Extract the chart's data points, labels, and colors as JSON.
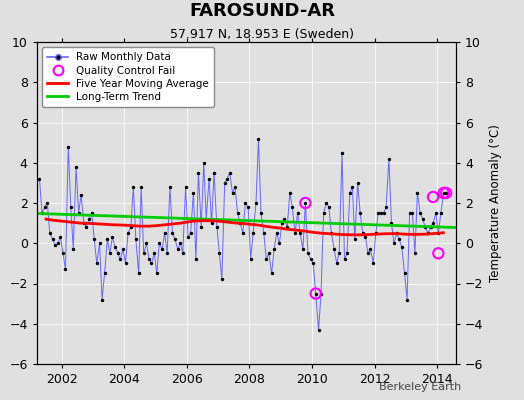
{
  "title": "FAROSUND-AR",
  "subtitle": "57.917 N, 18.953 E (Sweden)",
  "ylabel": "Temperature Anomaly (°C)",
  "ylim": [
    -6,
    10
  ],
  "yticks": [
    -6,
    -4,
    -2,
    0,
    2,
    4,
    6,
    8,
    10
  ],
  "xlim": [
    2001.2,
    2014.6
  ],
  "xticks": [
    2002,
    2004,
    2006,
    2008,
    2010,
    2012,
    2014
  ],
  "background_color": "#e0e0e0",
  "watermark": "Berkeley Earth",
  "raw_color": "#6666ff",
  "dot_color": "#000000",
  "ma_color": "#ff0000",
  "trend_color": "#00cc00",
  "qc_color": "#ff00ff",
  "raw_data": [
    [
      2001.29,
      3.2
    ],
    [
      2001.37,
      1.5
    ],
    [
      2001.46,
      1.8
    ],
    [
      2001.54,
      2.0
    ],
    [
      2001.62,
      0.5
    ],
    [
      2001.71,
      0.2
    ],
    [
      2001.79,
      -0.1
    ],
    [
      2001.87,
      0.0
    ],
    [
      2001.96,
      0.3
    ],
    [
      2002.04,
      -0.5
    ],
    [
      2002.12,
      -1.3
    ],
    [
      2002.21,
      4.8
    ],
    [
      2002.29,
      1.8
    ],
    [
      2002.37,
      -0.3
    ],
    [
      2002.46,
      3.8
    ],
    [
      2002.54,
      1.5
    ],
    [
      2002.62,
      2.4
    ],
    [
      2002.71,
      1.0
    ],
    [
      2002.79,
      0.8
    ],
    [
      2002.87,
      1.2
    ],
    [
      2002.96,
      1.5
    ],
    [
      2003.04,
      0.2
    ],
    [
      2003.12,
      -1.0
    ],
    [
      2003.21,
      0.0
    ],
    [
      2003.29,
      -2.8
    ],
    [
      2003.37,
      -1.5
    ],
    [
      2003.46,
      0.2
    ],
    [
      2003.54,
      -0.5
    ],
    [
      2003.62,
      0.3
    ],
    [
      2003.71,
      -0.2
    ],
    [
      2003.79,
      -0.5
    ],
    [
      2003.87,
      -0.8
    ],
    [
      2003.96,
      -0.3
    ],
    [
      2004.04,
      -1.0
    ],
    [
      2004.12,
      0.5
    ],
    [
      2004.21,
      0.8
    ],
    [
      2004.29,
      2.8
    ],
    [
      2004.37,
      0.2
    ],
    [
      2004.46,
      -1.5
    ],
    [
      2004.54,
      2.8
    ],
    [
      2004.62,
      -0.5
    ],
    [
      2004.71,
      0.0
    ],
    [
      2004.79,
      -0.8
    ],
    [
      2004.87,
      -1.0
    ],
    [
      2004.96,
      -0.5
    ],
    [
      2005.04,
      -1.5
    ],
    [
      2005.12,
      0.0
    ],
    [
      2005.21,
      -0.3
    ],
    [
      2005.29,
      0.5
    ],
    [
      2005.37,
      -0.5
    ],
    [
      2005.46,
      2.8
    ],
    [
      2005.54,
      0.5
    ],
    [
      2005.62,
      0.2
    ],
    [
      2005.71,
      -0.3
    ],
    [
      2005.79,
      0.0
    ],
    [
      2005.87,
      -0.5
    ],
    [
      2005.96,
      2.8
    ],
    [
      2006.04,
      0.3
    ],
    [
      2006.12,
      0.5
    ],
    [
      2006.21,
      2.5
    ],
    [
      2006.29,
      -0.8
    ],
    [
      2006.37,
      3.5
    ],
    [
      2006.46,
      0.8
    ],
    [
      2006.54,
      4.0
    ],
    [
      2006.62,
      1.2
    ],
    [
      2006.71,
      3.2
    ],
    [
      2006.79,
      1.0
    ],
    [
      2006.87,
      3.5
    ],
    [
      2006.96,
      0.8
    ],
    [
      2007.04,
      -0.5
    ],
    [
      2007.12,
      -1.8
    ],
    [
      2007.21,
      3.0
    ],
    [
      2007.29,
      3.2
    ],
    [
      2007.37,
      3.5
    ],
    [
      2007.46,
      2.5
    ],
    [
      2007.54,
      2.8
    ],
    [
      2007.62,
      1.5
    ],
    [
      2007.71,
      1.0
    ],
    [
      2007.79,
      0.5
    ],
    [
      2007.87,
      2.0
    ],
    [
      2007.96,
      1.8
    ],
    [
      2008.04,
      -0.8
    ],
    [
      2008.12,
      0.5
    ],
    [
      2008.21,
      2.0
    ],
    [
      2008.29,
      5.2
    ],
    [
      2008.37,
      1.5
    ],
    [
      2008.46,
      0.5
    ],
    [
      2008.54,
      -0.8
    ],
    [
      2008.62,
      -0.5
    ],
    [
      2008.71,
      -1.5
    ],
    [
      2008.79,
      -0.3
    ],
    [
      2008.87,
      0.5
    ],
    [
      2008.96,
      0.0
    ],
    [
      2009.04,
      1.0
    ],
    [
      2009.12,
      1.2
    ],
    [
      2009.21,
      0.8
    ],
    [
      2009.29,
      2.5
    ],
    [
      2009.37,
      1.8
    ],
    [
      2009.46,
      0.5
    ],
    [
      2009.54,
      1.5
    ],
    [
      2009.62,
      0.5
    ],
    [
      2009.71,
      -0.3
    ],
    [
      2009.79,
      2.0
    ],
    [
      2009.87,
      -0.5
    ],
    [
      2009.96,
      -0.8
    ],
    [
      2010.04,
      -1.0
    ],
    [
      2010.12,
      -2.5
    ],
    [
      2010.21,
      -4.3
    ],
    [
      2010.29,
      -2.5
    ],
    [
      2010.37,
      1.5
    ],
    [
      2010.46,
      2.0
    ],
    [
      2010.54,
      1.8
    ],
    [
      2010.62,
      0.5
    ],
    [
      2010.71,
      -0.3
    ],
    [
      2010.79,
      -1.0
    ],
    [
      2010.87,
      -0.5
    ],
    [
      2010.96,
      4.5
    ],
    [
      2011.04,
      -0.8
    ],
    [
      2011.12,
      -0.5
    ],
    [
      2011.21,
      2.5
    ],
    [
      2011.29,
      2.8
    ],
    [
      2011.37,
      0.2
    ],
    [
      2011.46,
      3.0
    ],
    [
      2011.54,
      1.5
    ],
    [
      2011.62,
      0.5
    ],
    [
      2011.71,
      0.3
    ],
    [
      2011.79,
      -0.5
    ],
    [
      2011.87,
      -0.3
    ],
    [
      2011.96,
      -1.0
    ],
    [
      2012.04,
      0.5
    ],
    [
      2012.12,
      1.5
    ],
    [
      2012.21,
      1.5
    ],
    [
      2012.29,
      1.5
    ],
    [
      2012.37,
      1.8
    ],
    [
      2012.46,
      4.2
    ],
    [
      2012.54,
      1.0
    ],
    [
      2012.62,
      0.0
    ],
    [
      2012.71,
      0.5
    ],
    [
      2012.79,
      0.2
    ],
    [
      2012.87,
      -0.2
    ],
    [
      2012.96,
      -1.5
    ],
    [
      2013.04,
      -2.8
    ],
    [
      2013.12,
      1.5
    ],
    [
      2013.21,
      1.5
    ],
    [
      2013.29,
      -0.5
    ],
    [
      2013.37,
      2.5
    ],
    [
      2013.46,
      1.5
    ],
    [
      2013.54,
      1.2
    ],
    [
      2013.62,
      0.8
    ],
    [
      2013.71,
      0.5
    ],
    [
      2013.79,
      0.8
    ],
    [
      2013.87,
      1.0
    ],
    [
      2013.96,
      1.5
    ],
    [
      2014.04,
      0.5
    ],
    [
      2014.12,
      1.5
    ],
    [
      2014.21,
      2.5
    ],
    [
      2014.29,
      2.5
    ]
  ],
  "moving_avg": [
    [
      2001.5,
      1.2
    ],
    [
      2001.7,
      1.15
    ],
    [
      2002.0,
      1.1
    ],
    [
      2002.3,
      1.05
    ],
    [
      2002.6,
      1.0
    ],
    [
      2003.0,
      0.98
    ],
    [
      2003.3,
      0.95
    ],
    [
      2003.6,
      0.92
    ],
    [
      2004.0,
      0.9
    ],
    [
      2004.2,
      0.88
    ],
    [
      2004.5,
      0.85
    ],
    [
      2004.8,
      0.85
    ],
    [
      2005.0,
      0.87
    ],
    [
      2005.2,
      0.9
    ],
    [
      2005.5,
      0.95
    ],
    [
      2005.8,
      1.0
    ],
    [
      2006.0,
      1.05
    ],
    [
      2006.2,
      1.1
    ],
    [
      2006.5,
      1.12
    ],
    [
      2006.8,
      1.12
    ],
    [
      2007.0,
      1.1
    ],
    [
      2007.3,
      1.05
    ],
    [
      2007.6,
      1.0
    ],
    [
      2007.8,
      0.98
    ],
    [
      2008.0,
      0.95
    ],
    [
      2008.3,
      0.9
    ],
    [
      2008.5,
      0.85
    ],
    [
      2008.7,
      0.8
    ],
    [
      2009.0,
      0.75
    ],
    [
      2009.2,
      0.7
    ],
    [
      2009.5,
      0.65
    ],
    [
      2009.8,
      0.6
    ],
    [
      2010.0,
      0.55
    ],
    [
      2010.3,
      0.5
    ],
    [
      2010.5,
      0.48
    ],
    [
      2010.8,
      0.45
    ],
    [
      2011.0,
      0.43
    ],
    [
      2011.3,
      0.42
    ],
    [
      2011.6,
      0.42
    ],
    [
      2011.8,
      0.43
    ],
    [
      2012.0,
      0.45
    ],
    [
      2012.3,
      0.47
    ],
    [
      2012.6,
      0.48
    ],
    [
      2012.8,
      0.47
    ],
    [
      2013.0,
      0.45
    ],
    [
      2013.3,
      0.44
    ],
    [
      2013.6,
      0.45
    ],
    [
      2013.8,
      0.47
    ],
    [
      2014.0,
      0.5
    ],
    [
      2014.2,
      0.52
    ]
  ],
  "trend_line": [
    [
      2001.2,
      1.48
    ],
    [
      2014.6,
      0.78
    ]
  ],
  "qc_fails": [
    [
      2009.79,
      2.0
    ],
    [
      2010.12,
      -2.5
    ],
    [
      2013.87,
      2.3
    ],
    [
      2014.04,
      -0.5
    ],
    [
      2014.21,
      2.5
    ],
    [
      2014.29,
      2.5
    ]
  ]
}
